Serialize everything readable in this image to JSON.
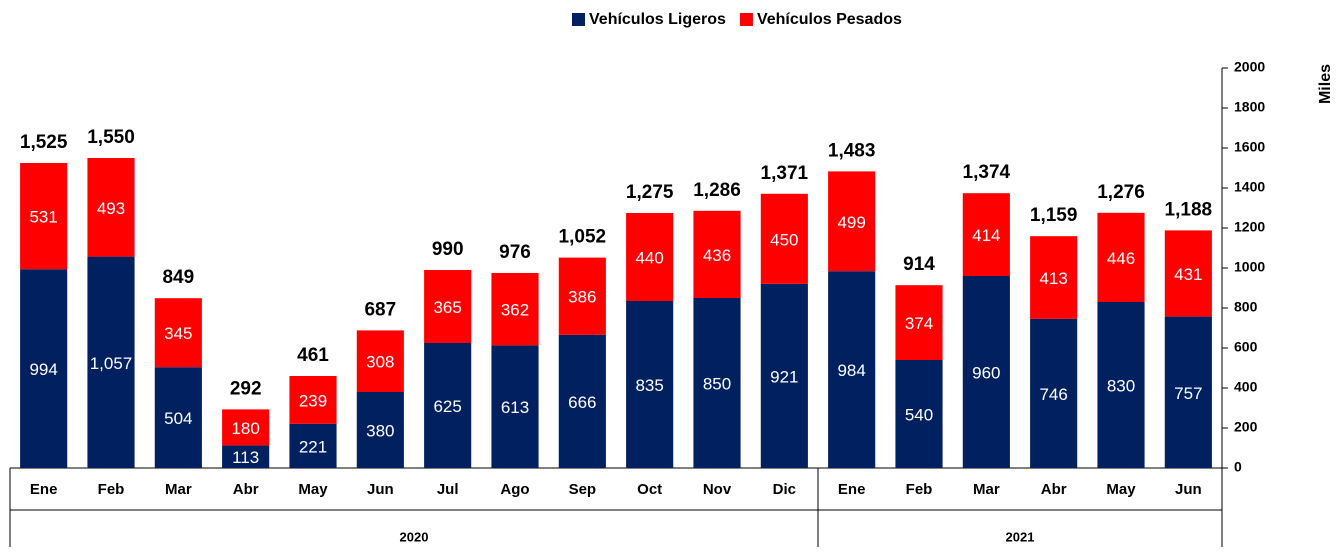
{
  "chart_data": {
    "type": "stacked_bar",
    "y_label": "Miles",
    "categories": [
      "Ene",
      "Feb",
      "Mar",
      "Abr",
      "May",
      "Jun",
      "Jul",
      "Ago",
      "Sep",
      "Oct",
      "Nov",
      "Dic",
      "Ene",
      "Feb",
      "Mar",
      "Abr",
      "May",
      "Jun"
    ],
    "groups": [
      {
        "label": "2020",
        "size": 12
      },
      {
        "label": "2021",
        "size": 6
      }
    ],
    "series": [
      {
        "name": "Vehículos Ligeros",
        "color": "#002060",
        "values": [
          994,
          1057,
          504,
          113,
          221,
          380,
          625,
          613,
          666,
          835,
          850,
          921,
          984,
          540,
          960,
          746,
          830,
          757
        ],
        "value_labels": [
          "994",
          "1,057",
          "504",
          "113",
          "221",
          "380",
          "625",
          "613",
          "666",
          "835",
          "850",
          "921",
          "984",
          "540",
          "960",
          "746",
          "830",
          "757"
        ]
      },
      {
        "name": "Vehículos Pesados",
        "color": "#ff0000",
        "values": [
          531,
          493,
          345,
          180,
          239,
          308,
          365,
          362,
          386,
          440,
          436,
          450,
          499,
          374,
          414,
          413,
          446,
          431
        ],
        "value_labels": [
          "531",
          "493",
          "345",
          "180",
          "239",
          "308",
          "365",
          "362",
          "386",
          "440",
          "436",
          "450",
          "499",
          "374",
          "414",
          "413",
          "446",
          "431"
        ]
      }
    ],
    "totals": {
      "values": [
        1525,
        1550,
        849,
        292,
        461,
        687,
        990,
        976,
        1052,
        1275,
        1286,
        1371,
        1483,
        914,
        1374,
        1159,
        1276,
        1188
      ],
      "value_labels": [
        "1,525",
        "1,550",
        "849",
        "292",
        "461",
        "687",
        "990",
        "976",
        "1,052",
        "1,275",
        "1,286",
        "1,371",
        "1,483",
        "914",
        "1,374",
        "1,159",
        "1,276",
        "1,188"
      ]
    },
    "ylim": [
      0,
      2000
    ],
    "yticks": [
      0,
      200,
      400,
      600,
      800,
      1000,
      1200,
      1400,
      1600,
      1800,
      2000
    ],
    "y_axis_side": "right",
    "legend": "top"
  }
}
